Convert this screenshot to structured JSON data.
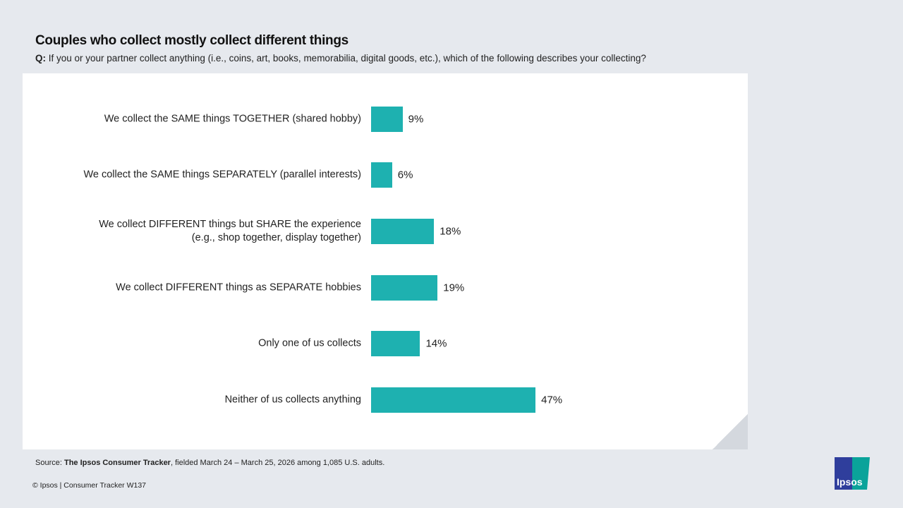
{
  "title": "Couples who collect mostly collect different things",
  "question": {
    "prefix": "Q:",
    "text": "If you or your partner collect anything (i.e., coins, art, books, memorabilia, digital goods, etc.), which of the following describes your collecting?"
  },
  "chart_data": {
    "type": "bar",
    "orientation": "horizontal",
    "categories": [
      [
        "We collect the SAME things TOGETHER (shared hobby)"
      ],
      [
        "We collect the SAME things SEPARATELY (parallel interests)"
      ],
      [
        "We collect DIFFERENT things but SHARE the experience",
        "(e.g., shop together, display together)"
      ],
      [
        "We collect DIFFERENT things as SEPARATE hobbies"
      ],
      [
        "Only one of us collects"
      ],
      [
        "Neither of us collects anything"
      ]
    ],
    "values": [
      9,
      6,
      18,
      19,
      14,
      47
    ],
    "value_labels": [
      "9%",
      "6%",
      "18%",
      "19%",
      "14%",
      "47%"
    ],
    "color": "#1eb1b0",
    "grid": false
  },
  "footer": {
    "source_prefix": "Source: ",
    "source_bold": "The Ipsos Consumer Tracker",
    "source_rest": ", fielded March 24 – March 25, 2026 among 1,085 U.S. adults.",
    "copyright": "© Ipsos | Consumer Tracker W137",
    "logo": "Ipsos"
  }
}
